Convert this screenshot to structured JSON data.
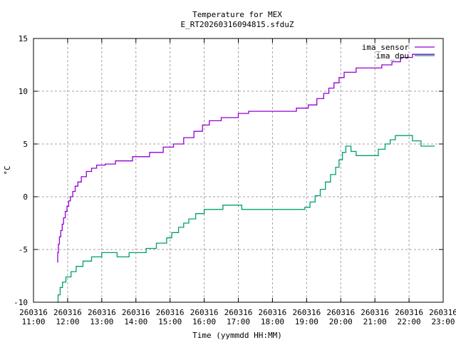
{
  "chart_data": {
    "type": "line",
    "title": "Temperature for MEX",
    "subtitle": "E_RT20260316094815.sfduZ",
    "xlabel": "Time (yymmdd HH:MM)",
    "ylabel": "°C",
    "xlim": [
      11,
      23
    ],
    "ylim": [
      -10,
      15
    ],
    "grid": true,
    "legend_position": "top-right",
    "x_ticks": [
      {
        "value": 11,
        "date": "260316",
        "time": "11:00"
      },
      {
        "value": 12,
        "date": "260316",
        "time": "12:00"
      },
      {
        "value": 13,
        "date": "260316",
        "time": "13:00"
      },
      {
        "value": 14,
        "date": "260316",
        "time": "14:00"
      },
      {
        "value": 15,
        "date": "260316",
        "time": "15:00"
      },
      {
        "value": 16,
        "date": "260316",
        "time": "16:00"
      },
      {
        "value": 17,
        "date": "260316",
        "time": "17:00"
      },
      {
        "value": 18,
        "date": "260316",
        "time": "18:00"
      },
      {
        "value": 19,
        "date": "260316",
        "time": "19:00"
      },
      {
        "value": 20,
        "date": "260316",
        "time": "20:00"
      },
      {
        "value": 21,
        "date": "260316",
        "time": "21:00"
      },
      {
        "value": 22,
        "date": "260316",
        "time": "22:00"
      },
      {
        "value": 23,
        "date": "260316",
        "time": "23:00"
      }
    ],
    "y_ticks": [
      {
        "value": -10,
        "label": "-10"
      },
      {
        "value": -5,
        "label": "-5"
      },
      {
        "value": 0,
        "label": "0"
      },
      {
        "value": 5,
        "label": "5"
      },
      {
        "value": 10,
        "label": "10"
      },
      {
        "value": 15,
        "label": "15"
      }
    ],
    "series": [
      {
        "name": "ima_sensor",
        "color": "#9400d3",
        "step": true,
        "points": [
          [
            11.7,
            -6.2
          ],
          [
            11.71,
            -5.3
          ],
          [
            11.73,
            -4.5
          ],
          [
            11.76,
            -3.8
          ],
          [
            11.8,
            -3.2
          ],
          [
            11.84,
            -2.6
          ],
          [
            11.88,
            -2.0
          ],
          [
            11.93,
            -1.4
          ],
          [
            11.98,
            -0.9
          ],
          [
            12.03,
            -0.4
          ],
          [
            12.08,
            0.0
          ],
          [
            12.15,
            0.5
          ],
          [
            12.22,
            1.0
          ],
          [
            12.3,
            1.4
          ],
          [
            12.4,
            1.9
          ],
          [
            12.55,
            2.4
          ],
          [
            12.7,
            2.7
          ],
          [
            12.85,
            3.0
          ],
          [
            13.1,
            3.1
          ],
          [
            13.4,
            3.4
          ],
          [
            13.9,
            3.8
          ],
          [
            14.4,
            4.2
          ],
          [
            14.8,
            4.7
          ],
          [
            15.1,
            5.0
          ],
          [
            15.4,
            5.6
          ],
          [
            15.7,
            6.2
          ],
          [
            15.95,
            6.8
          ],
          [
            16.15,
            7.2
          ],
          [
            16.5,
            7.5
          ],
          [
            17.0,
            7.9
          ],
          [
            17.3,
            8.1
          ],
          [
            18.7,
            8.4
          ],
          [
            19.05,
            8.7
          ],
          [
            19.3,
            9.3
          ],
          [
            19.5,
            9.8
          ],
          [
            19.65,
            10.3
          ],
          [
            19.8,
            10.8
          ],
          [
            19.95,
            11.3
          ],
          [
            20.1,
            11.8
          ],
          [
            20.45,
            12.2
          ],
          [
            21.2,
            12.5
          ],
          [
            21.5,
            12.8
          ],
          [
            21.75,
            13.2
          ],
          [
            22.1,
            13.5
          ],
          [
            22.75,
            13.5
          ]
        ]
      },
      {
        "name": "ima_dpu",
        "color": "#009e73",
        "step": true,
        "points": [
          [
            11.7,
            -10.0
          ],
          [
            11.72,
            -9.3
          ],
          [
            11.78,
            -8.6
          ],
          [
            11.85,
            -8.1
          ],
          [
            11.95,
            -7.6
          ],
          [
            12.1,
            -7.1
          ],
          [
            12.25,
            -6.6
          ],
          [
            12.45,
            -6.1
          ],
          [
            12.7,
            -5.7
          ],
          [
            13.0,
            -5.3
          ],
          [
            13.45,
            -5.7
          ],
          [
            13.8,
            -5.3
          ],
          [
            14.3,
            -4.9
          ],
          [
            14.6,
            -4.4
          ],
          [
            14.9,
            -3.9
          ],
          [
            15.05,
            -3.4
          ],
          [
            15.25,
            -2.9
          ],
          [
            15.4,
            -2.5
          ],
          [
            15.55,
            -2.1
          ],
          [
            15.75,
            -1.6
          ],
          [
            16.0,
            -1.2
          ],
          [
            16.55,
            -0.8
          ],
          [
            17.1,
            -1.2
          ],
          [
            18.95,
            -1.0
          ],
          [
            19.1,
            -0.5
          ],
          [
            19.25,
            0.1
          ],
          [
            19.4,
            0.7
          ],
          [
            19.55,
            1.4
          ],
          [
            19.7,
            2.1
          ],
          [
            19.85,
            2.8
          ],
          [
            19.95,
            3.5
          ],
          [
            20.05,
            4.2
          ],
          [
            20.15,
            4.8
          ],
          [
            20.3,
            4.3
          ],
          [
            20.45,
            3.9
          ],
          [
            21.1,
            4.5
          ],
          [
            21.3,
            5.0
          ],
          [
            21.45,
            5.4
          ],
          [
            21.6,
            5.8
          ],
          [
            22.1,
            5.3
          ],
          [
            22.35,
            4.8
          ],
          [
            22.75,
            4.8
          ]
        ]
      }
    ]
  }
}
